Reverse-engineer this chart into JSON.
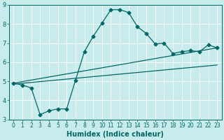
{
  "xlabel": "Humidex (Indice chaleur)",
  "ylabel": "",
  "background_color": "#c8ecec",
  "line_color": "#006666",
  "grid_color": "#ffffff",
  "xlim": [
    -0.5,
    23.5
  ],
  "ylim": [
    3,
    9
  ],
  "xticks": [
    0,
    1,
    2,
    3,
    4,
    5,
    6,
    7,
    8,
    9,
    10,
    11,
    12,
    13,
    14,
    15,
    16,
    17,
    18,
    19,
    20,
    21,
    22,
    23
  ],
  "yticks": [
    3,
    4,
    5,
    6,
    7,
    8,
    9
  ],
  "series1_x": [
    0,
    1,
    2,
    3,
    4,
    5,
    6,
    7,
    8,
    9,
    10,
    11,
    12,
    13,
    14,
    15,
    16,
    17,
    18,
    19,
    20,
    21,
    22,
    23
  ],
  "series1_y": [
    4.9,
    4.8,
    4.65,
    3.25,
    3.45,
    3.55,
    3.55,
    5.05,
    6.55,
    7.35,
    8.05,
    8.75,
    8.75,
    8.6,
    7.85,
    7.5,
    6.95,
    7.0,
    6.45,
    6.55,
    6.6,
    6.55,
    6.9,
    6.75
  ],
  "series2_x": [
    0,
    23
  ],
  "series2_y": [
    4.9,
    6.75
  ],
  "series3_x": [
    0,
    23
  ],
  "series3_y": [
    4.85,
    5.85
  ],
  "xlabel_fontsize": 7,
  "xlabel_fontweight": "bold",
  "tick_fontsize": 5.5,
  "marker_size": 2.5,
  "line_width": 0.9
}
